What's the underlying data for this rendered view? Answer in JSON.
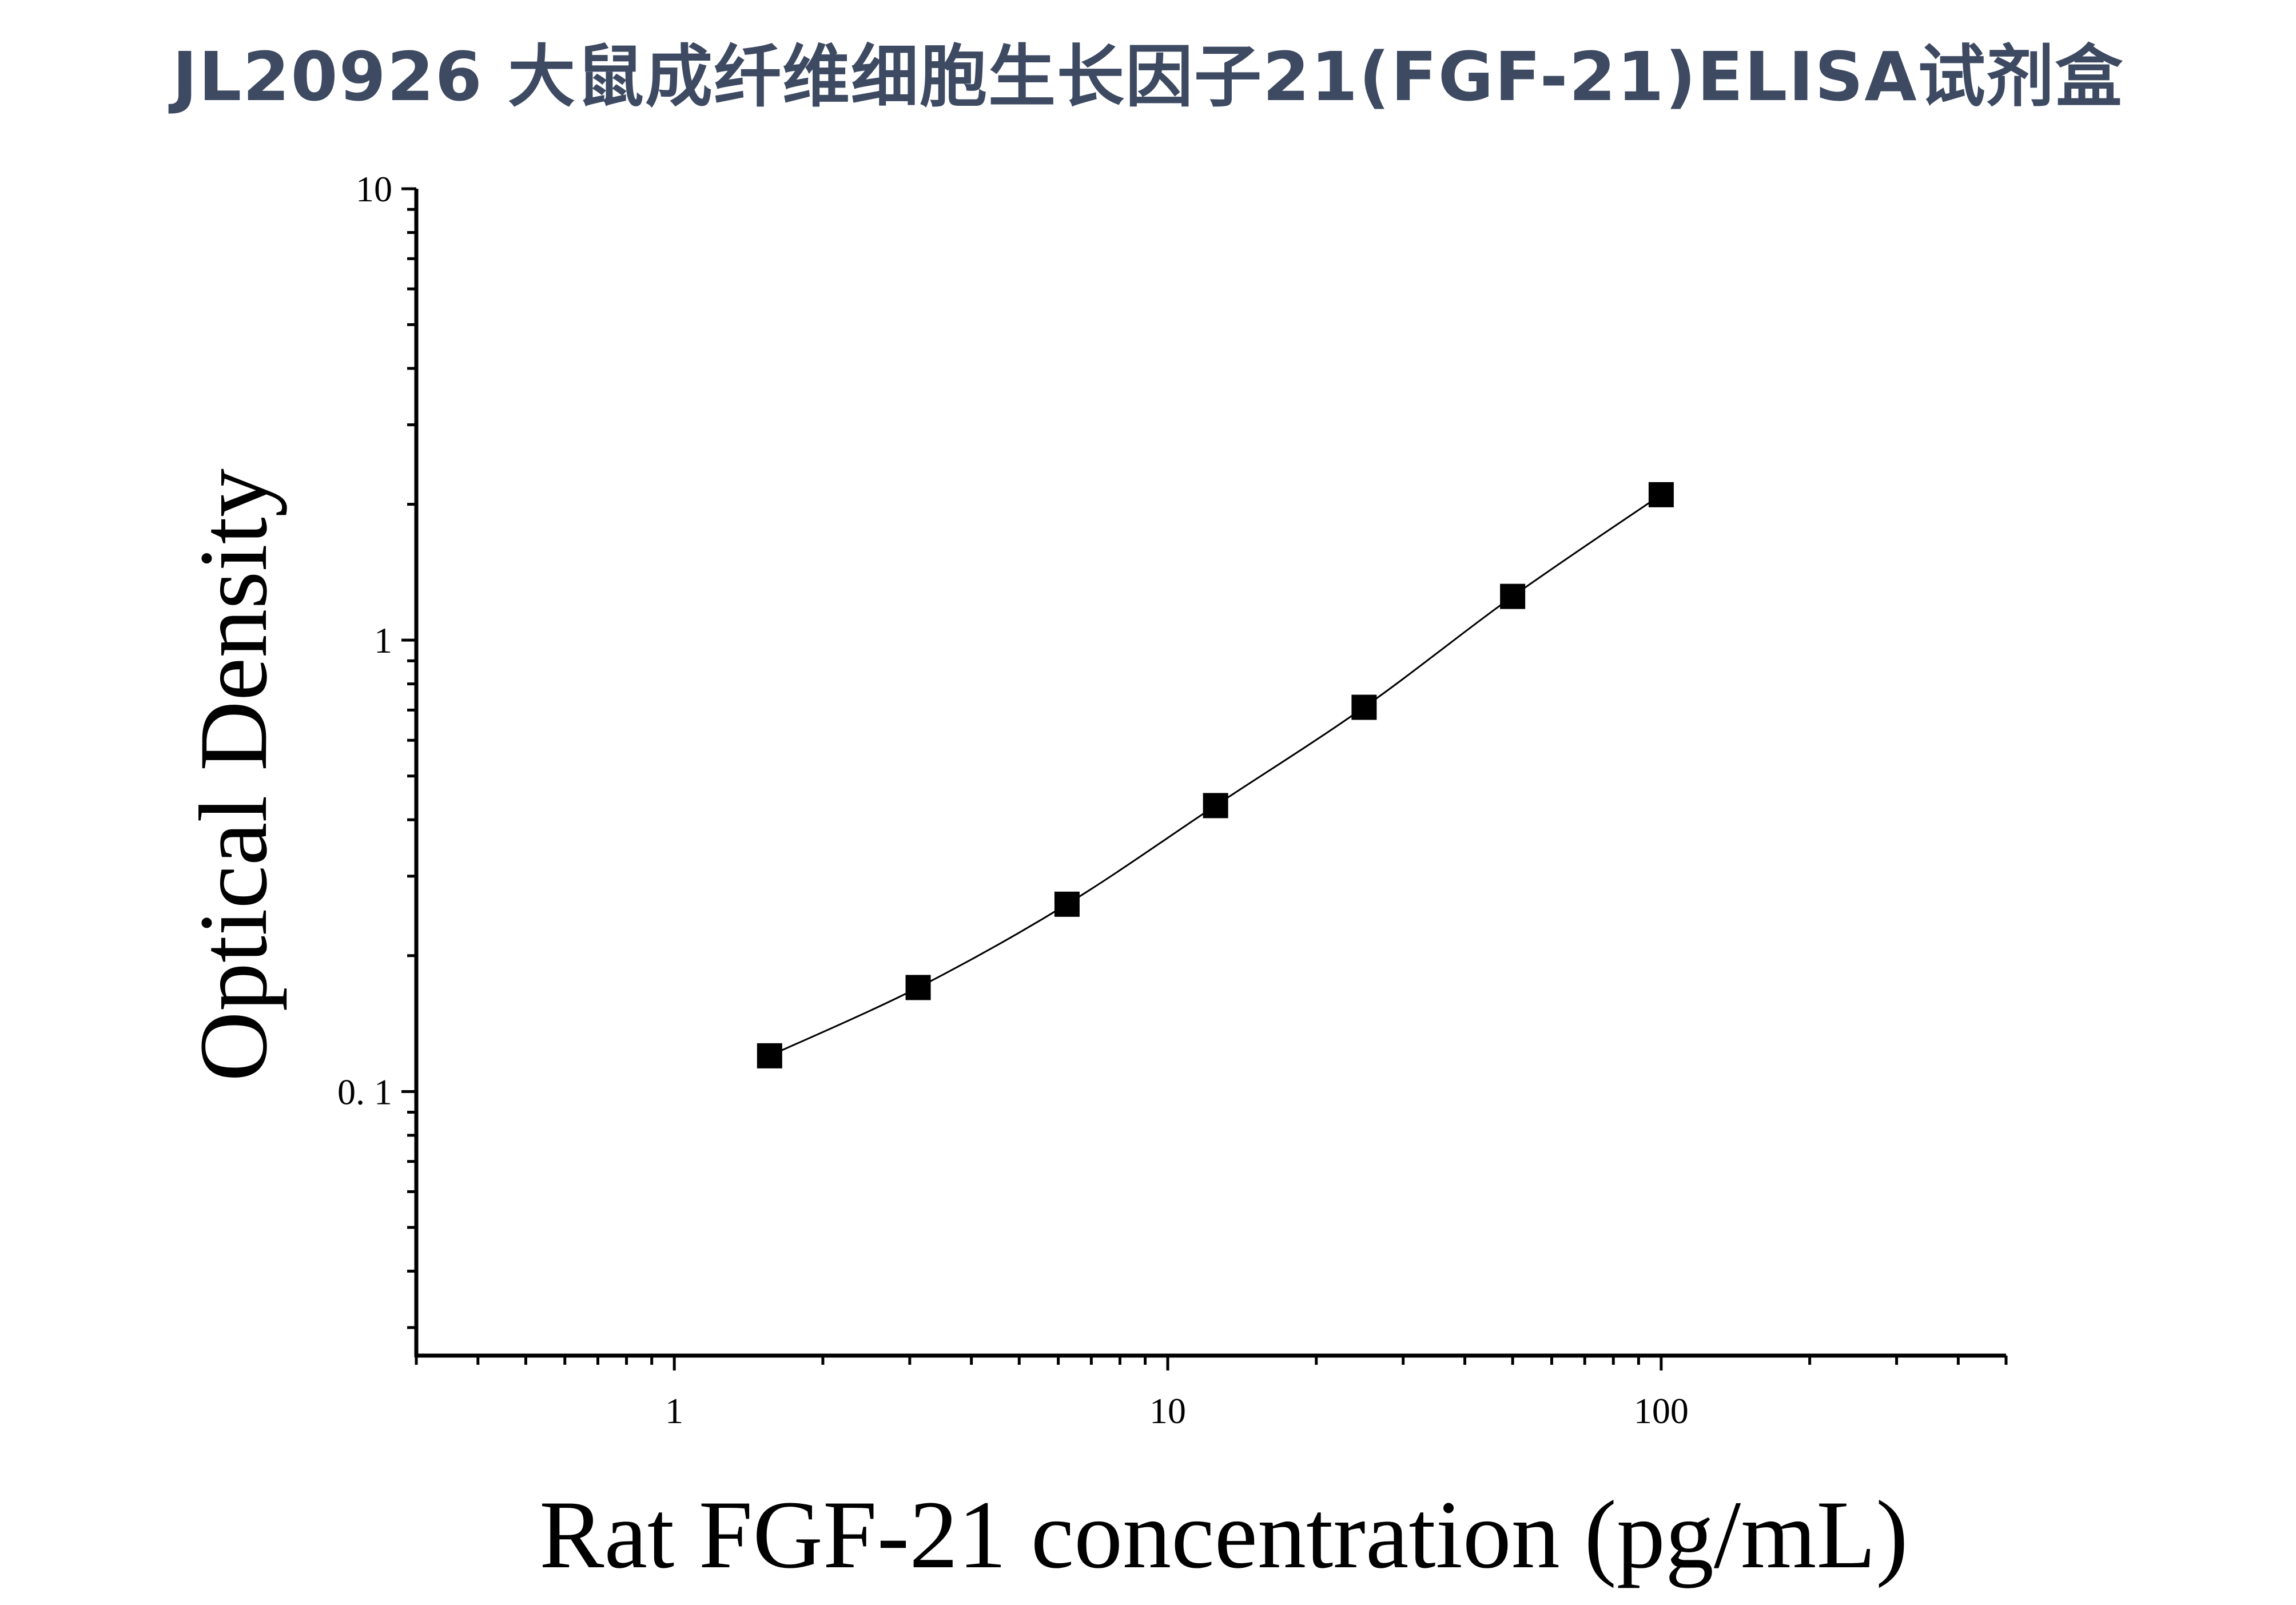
{
  "chart_data": {
    "type": "line",
    "title": "JL20926 大鼠成纤维细胞生长因子21(FGF-21)ELISA试剂盒",
    "xlabel": "Rat FGF-21 concentration (pg/mL)",
    "ylabel": "Optical Density",
    "xscale": "log",
    "yscale": "log",
    "xlim": [
      0.3,
      500
    ],
    "ylim": [
      0.026,
      10
    ],
    "x_ticks": [
      1,
      10,
      100
    ],
    "x_tick_labels": [
      "1",
      "10",
      "100"
    ],
    "y_ticks": [
      0.1,
      1,
      10
    ],
    "y_tick_labels": [
      "0. 1",
      "1",
      "10"
    ],
    "grid": false,
    "legend": "none",
    "marker": "square",
    "colors": {
      "title": "#3d4a62",
      "marks": "#000000"
    },
    "series": [
      {
        "x": [
          1.56,
          3.12,
          6.25,
          12.5,
          25,
          50,
          100
        ],
        "y": [
          0.12,
          0.17,
          0.26,
          0.43,
          0.71,
          1.25,
          2.1
        ]
      }
    ]
  }
}
